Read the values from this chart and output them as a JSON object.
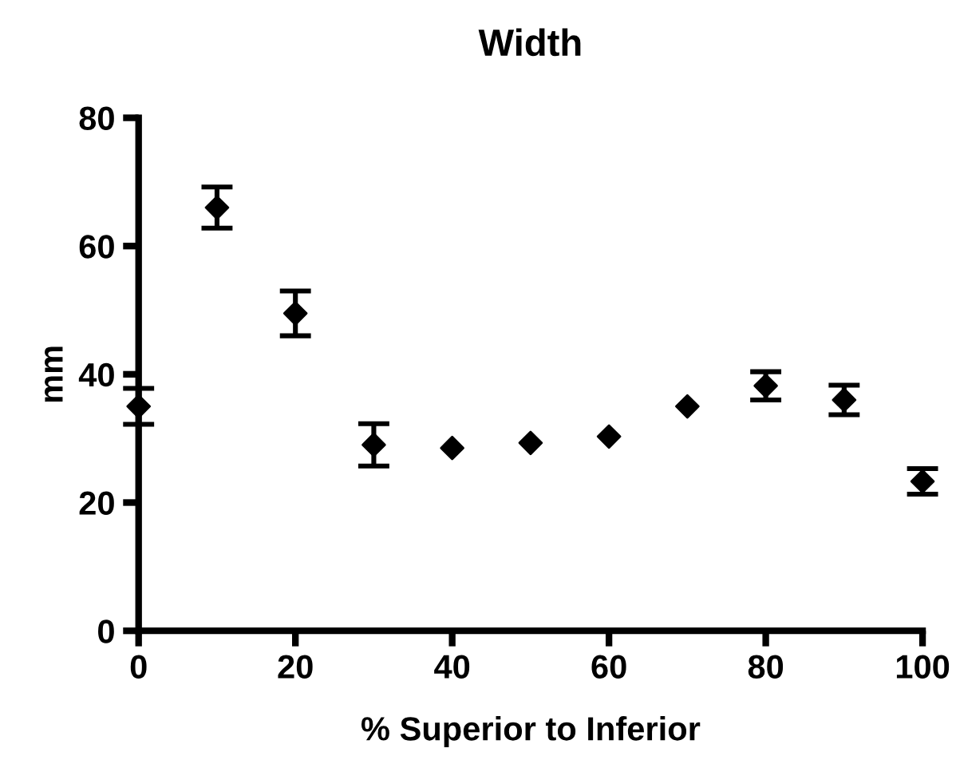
{
  "chart_data": {
    "type": "scatter",
    "title": "Width",
    "xlabel": "% Superior to Inferior",
    "ylabel": "mm",
    "x": [
      0,
      10,
      20,
      30,
      40,
      50,
      60,
      70,
      80,
      90,
      100
    ],
    "values": [
      35,
      66,
      49.5,
      29,
      28.5,
      29.3,
      30.3,
      35,
      38.2,
      36,
      23.3
    ],
    "errors": [
      2.8,
      3.2,
      3.5,
      3.3,
      null,
      null,
      null,
      null,
      2.2,
      2.3,
      2
    ],
    "color": "#000000",
    "marker": "diamond",
    "xlim": [
      0,
      100
    ],
    "xticks": [
      0,
      20,
      40,
      60,
      80,
      100
    ],
    "ylim": [
      0,
      80
    ],
    "yticks": [
      0,
      20,
      40,
      60,
      80
    ],
    "grid": false,
    "legend": false
  }
}
